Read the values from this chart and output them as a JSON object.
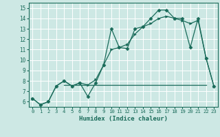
{
  "line1_x": [
    0,
    1,
    2,
    3,
    4,
    5,
    6,
    7,
    8,
    9,
    10,
    11,
    12,
    13,
    14,
    15,
    16,
    17,
    18,
    19,
    20,
    21,
    22,
    23
  ],
  "line1_y": [
    6.3,
    5.7,
    6.0,
    7.5,
    8.0,
    7.5,
    7.8,
    6.5,
    7.8,
    9.5,
    13.0,
    11.2,
    11.1,
    13.0,
    13.2,
    14.0,
    14.8,
    14.8,
    14.0,
    14.0,
    11.2,
    14.0,
    10.2,
    7.5
  ],
  "line2_x": [
    0,
    1,
    2,
    3,
    4,
    5,
    6,
    7,
    8,
    9,
    10,
    11,
    12,
    13,
    14,
    15,
    16,
    17,
    18,
    19,
    20,
    21,
    22,
    23
  ],
  "line2_y": [
    6.3,
    5.7,
    6.0,
    7.5,
    8.0,
    7.5,
    7.8,
    7.6,
    8.1,
    9.5,
    11.0,
    11.2,
    11.5,
    12.5,
    13.2,
    13.5,
    14.0,
    14.2,
    14.0,
    13.8,
    13.5,
    13.8,
    10.2,
    7.5
  ],
  "hline_x": [
    4,
    22
  ],
  "hline_y": [
    7.6,
    7.6
  ],
  "color": "#1a6b5a",
  "bg_color": "#cde8e4",
  "grid_color": "#b8d8d4",
  "xlabel": "Humidex (Indice chaleur)",
  "ylim": [
    5.5,
    15.5
  ],
  "xlim": [
    -0.5,
    23.5
  ],
  "yticks": [
    6,
    7,
    8,
    9,
    10,
    11,
    12,
    13,
    14,
    15
  ],
  "xticks": [
    0,
    1,
    2,
    3,
    4,
    5,
    6,
    7,
    8,
    9,
    10,
    11,
    12,
    13,
    14,
    15,
    16,
    17,
    18,
    19,
    20,
    21,
    22,
    23
  ]
}
